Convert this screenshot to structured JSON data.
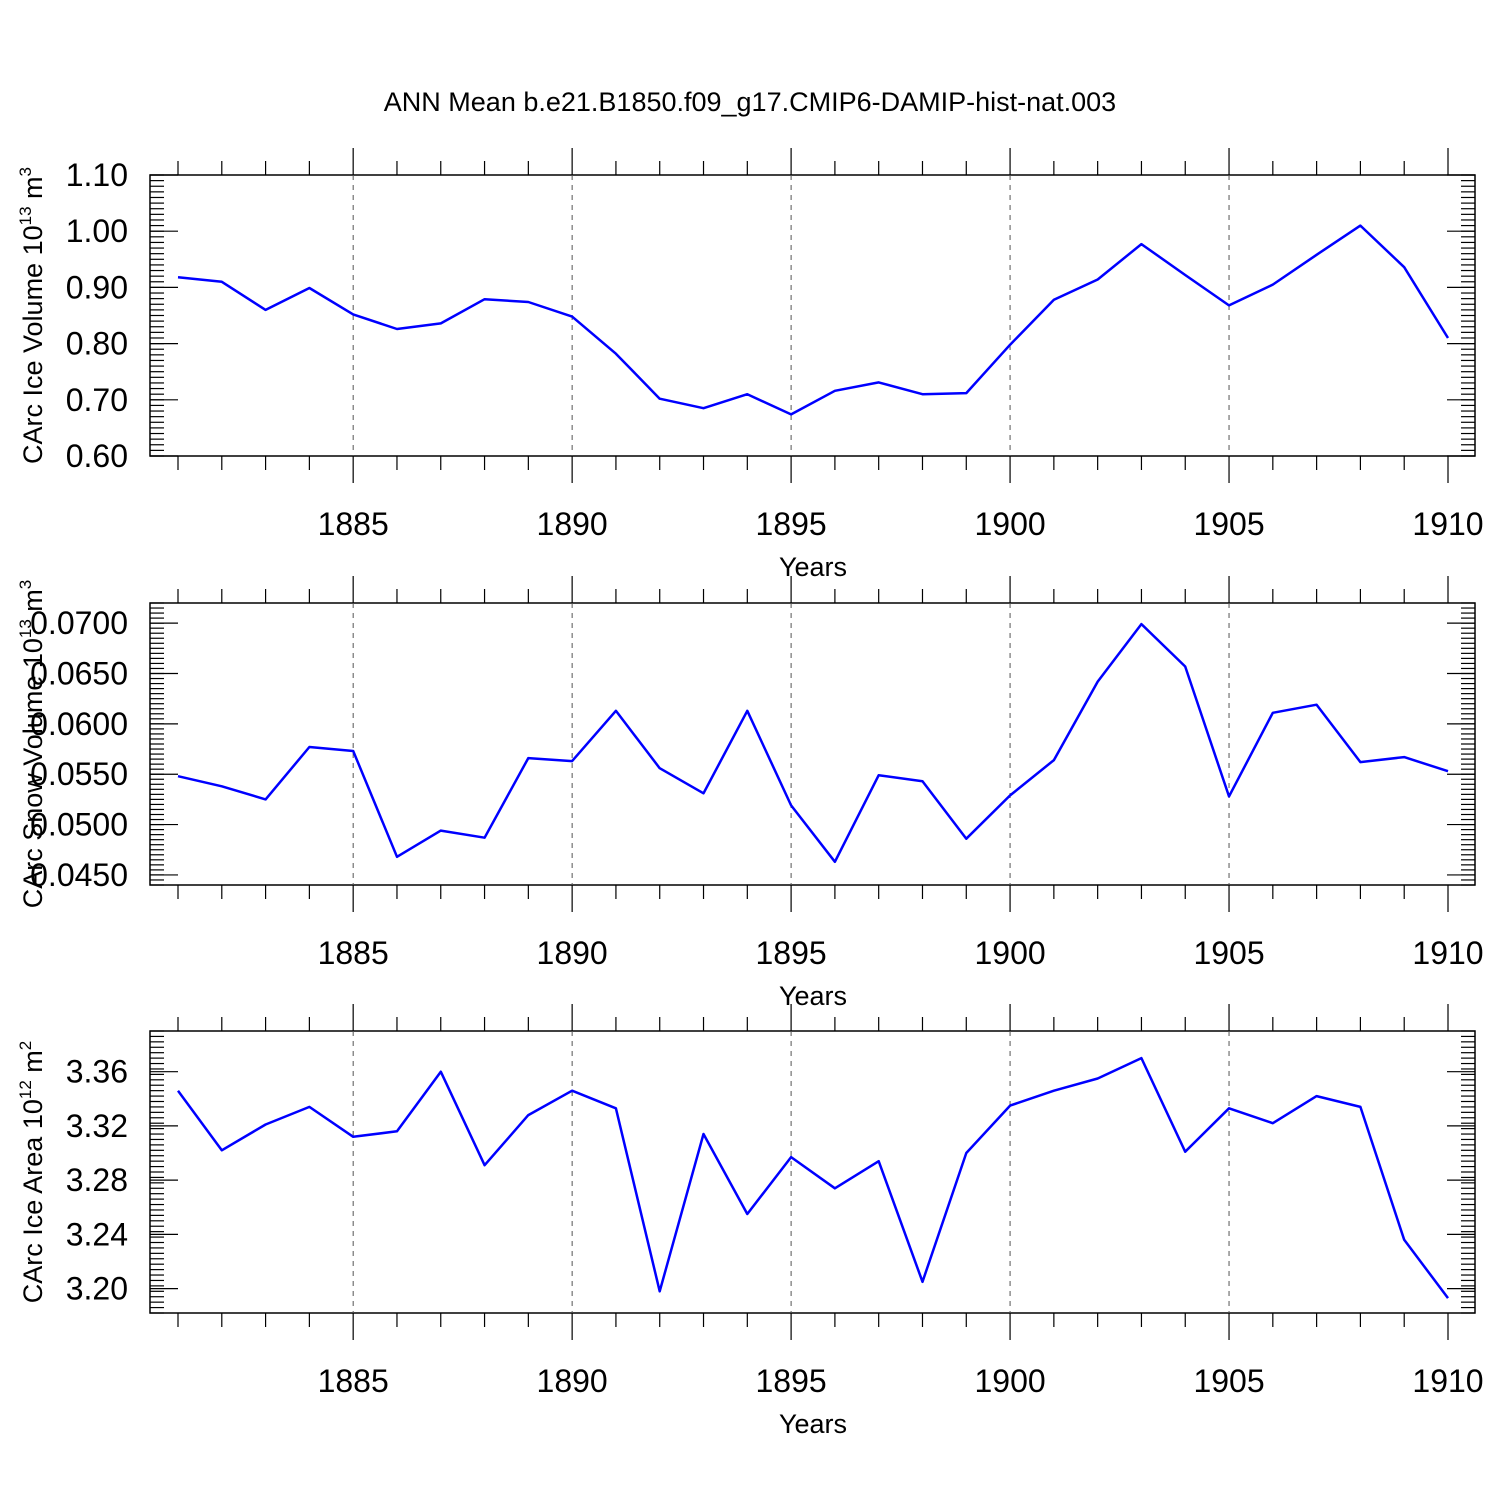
{
  "title": "ANN Mean b.e21.B1850.f09_g17.CMIP6-DAMIP-hist-nat.003",
  "chart_data": [
    {
      "type": "line",
      "ylabel": "CArc Ice Volume 10",
      "ylabel_sup": "13",
      "ylabel_unit": " m",
      "ylabel_unit_sup": "3",
      "xlabel": "Years",
      "xlim": [
        1881,
        1910
      ],
      "ylim": [
        0.6,
        1.1
      ],
      "xticks": [
        "1885",
        "1890",
        "1895",
        "1900",
        "1905",
        "1910"
      ],
      "yticks": [
        "0.60",
        "0.70",
        "0.80",
        "0.90",
        "1.00",
        "1.10"
      ],
      "x": [
        1881,
        1882,
        1883,
        1884,
        1885,
        1886,
        1887,
        1888,
        1889,
        1890,
        1891,
        1892,
        1893,
        1894,
        1895,
        1896,
        1897,
        1898,
        1899,
        1900,
        1901,
        1902,
        1903,
        1904,
        1905,
        1906,
        1907,
        1908,
        1909,
        1910
      ],
      "values": [
        0.918,
        0.91,
        0.86,
        0.899,
        0.852,
        0.826,
        0.836,
        0.879,
        0.874,
        0.848,
        0.782,
        0.702,
        0.685,
        0.71,
        0.674,
        0.716,
        0.731,
        0.71,
        0.712,
        0.798,
        0.878,
        0.914,
        0.977,
        0.922,
        0.868,
        0.905,
        0.958,
        1.01,
        0.936,
        0.81
      ]
    },
    {
      "type": "line",
      "ylabel": "CArc Snow Volume 10",
      "ylabel_sup": "13",
      "ylabel_unit": " m",
      "ylabel_unit_sup": "3",
      "xlabel": "Years",
      "xlim": [
        1881,
        1910
      ],
      "ylim": [
        0.044,
        0.072
      ],
      "xticks": [
        "1885",
        "1890",
        "1895",
        "1900",
        "1905",
        "1910"
      ],
      "yticks": [
        "0.0450",
        "0.0500",
        "0.0550",
        "0.0600",
        "0.0650",
        "0.0700"
      ],
      "x": [
        1881,
        1882,
        1883,
        1884,
        1885,
        1886,
        1887,
        1888,
        1889,
        1890,
        1891,
        1892,
        1893,
        1894,
        1895,
        1896,
        1897,
        1898,
        1899,
        1900,
        1901,
        1902,
        1903,
        1904,
        1905,
        1906,
        1907,
        1908,
        1909,
        1910
      ],
      "values": [
        0.0548,
        0.0538,
        0.0525,
        0.0577,
        0.0573,
        0.0468,
        0.0494,
        0.0487,
        0.0566,
        0.0563,
        0.0613,
        0.0556,
        0.0531,
        0.0613,
        0.0519,
        0.0463,
        0.0549,
        0.0543,
        0.0486,
        0.0529,
        0.0564,
        0.0642,
        0.0699,
        0.0657,
        0.0528,
        0.0611,
        0.0619,
        0.0562,
        0.0567,
        0.0553
      ]
    },
    {
      "type": "line",
      "ylabel": "CArc Ice Area 10",
      "ylabel_sup": "12",
      "ylabel_unit": " m",
      "ylabel_unit_sup": "2",
      "xlabel": "Years",
      "xlim": [
        1881,
        1910
      ],
      "ylim": [
        3.182,
        3.39
      ],
      "xticks": [
        "1885",
        "1890",
        "1895",
        "1900",
        "1905",
        "1910"
      ],
      "yticks": [
        "3.20",
        "3.24",
        "3.28",
        "3.32",
        "3.36"
      ],
      "x": [
        1881,
        1882,
        1883,
        1884,
        1885,
        1886,
        1887,
        1888,
        1889,
        1890,
        1891,
        1892,
        1893,
        1894,
        1895,
        1896,
        1897,
        1898,
        1899,
        1900,
        1901,
        1902,
        1903,
        1904,
        1905,
        1906,
        1907,
        1908,
        1909,
        1910
      ],
      "values": [
        3.346,
        3.302,
        3.321,
        3.334,
        3.312,
        3.316,
        3.36,
        3.291,
        3.328,
        3.346,
        3.333,
        3.198,
        3.314,
        3.255,
        3.297,
        3.274,
        3.294,
        3.205,
        3.3,
        3.335,
        3.346,
        3.355,
        3.37,
        3.301,
        3.333,
        3.322,
        3.342,
        3.334,
        3.236,
        3.193
      ]
    }
  ]
}
